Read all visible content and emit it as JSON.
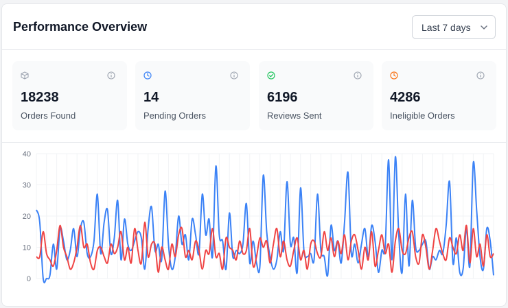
{
  "header": {
    "title": "Performance Overview",
    "range_selected": "Last 7 days"
  },
  "stats": [
    {
      "value": "18238",
      "label": "Orders Found",
      "icon": "box-icon",
      "color": "#9ca3af"
    },
    {
      "value": "14",
      "label": "Pending Orders",
      "icon": "clock-icon",
      "color": "#3b82f6"
    },
    {
      "value": "6196",
      "label": "Reviews Sent",
      "icon": "check-circle-icon",
      "color": "#22c55e"
    },
    {
      "value": "4286",
      "label": "Ineligible Orders",
      "icon": "clock-icon",
      "color": "#f97316"
    }
  ],
  "chart_data": {
    "type": "line",
    "ylim": [
      0,
      40
    ],
    "yticks": [
      "0",
      "10",
      "20",
      "30",
      "40"
    ],
    "grid": true,
    "series": [
      {
        "color": "#3b82f6",
        "values": [
          22,
          18,
          0,
          0,
          1,
          11,
          3,
          16,
          12,
          6,
          9,
          16,
          7,
          16,
          18,
          8,
          7,
          12,
          27,
          8,
          18,
          22,
          8,
          13,
          25,
          6,
          19,
          11,
          9,
          12,
          15,
          13,
          3,
          16,
          23,
          9,
          11,
          6,
          28,
          11,
          3,
          7,
          20,
          11,
          14,
          6,
          19,
          14,
          8,
          27,
          14,
          19,
          7,
          36,
          14,
          12,
          3,
          21,
          7,
          9,
          8,
          11,
          24,
          5,
          12,
          5,
          4,
          33,
          15,
          7,
          3,
          6,
          15,
          9,
          31,
          11,
          13,
          2,
          29,
          9,
          7,
          8,
          6,
          27,
          9,
          7,
          1,
          17,
          9,
          12,
          5,
          18,
          34,
          8,
          11,
          5,
          11,
          16,
          7,
          17,
          12,
          2,
          9,
          10,
          38,
          6,
          39,
          14,
          2,
          27,
          4,
          25,
          10,
          9,
          11,
          12,
          3,
          7,
          6,
          9,
          8,
          17,
          31,
          5,
          13,
          2,
          3,
          16,
          4,
          37,
          22,
          7,
          3,
          16,
          12,
          1
        ]
      },
      {
        "color": "#ef4444",
        "values": [
          7,
          7,
          15,
          8,
          6,
          4,
          9,
          17,
          10,
          7,
          3,
          5,
          10,
          17,
          10,
          11,
          5,
          3,
          9,
          10,
          7,
          5,
          11,
          8,
          10,
          15,
          6,
          10,
          5,
          16,
          9,
          5,
          18,
          7,
          11,
          11,
          2,
          10,
          6,
          3,
          11,
          7,
          14,
          16,
          7,
          9,
          6,
          12,
          9,
          3,
          9,
          8,
          16,
          7,
          8,
          3,
          13,
          10,
          9,
          6,
          12,
          8,
          9,
          16,
          4,
          7,
          13,
          10,
          12,
          5,
          11,
          16,
          7,
          12,
          6,
          4,
          9,
          13,
          6,
          9,
          3,
          11,
          12,
          8,
          7,
          15,
          9,
          13,
          7,
          12,
          8,
          14,
          6,
          12,
          14,
          9,
          3,
          10,
          6,
          15,
          4,
          9,
          14,
          8,
          11,
          2,
          12,
          16,
          9,
          8,
          13,
          15,
          7,
          5,
          14,
          10,
          3,
          9,
          16,
          12,
          8,
          6,
          13,
          10,
          8,
          14,
          9,
          17,
          5,
          16,
          7,
          11,
          4,
          14,
          7,
          8
        ]
      }
    ]
  }
}
